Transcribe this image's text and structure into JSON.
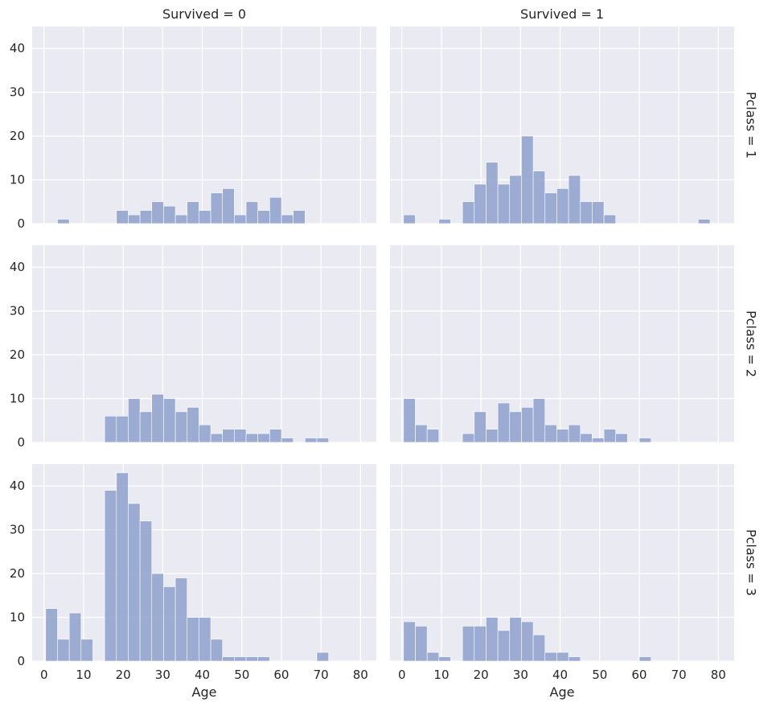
{
  "chart_data": {
    "type": "bar",
    "facet_title_template": "{col} = {val}",
    "col_var": "Survived",
    "row_var": "Pclass",
    "col_values": [
      "0",
      "1"
    ],
    "row_values": [
      "1",
      "2",
      "3"
    ],
    "col_titles": [
      "Survived = 0",
      "Survived = 1"
    ],
    "row_titles": [
      "Pclass = 1",
      "Pclass = 2",
      "Pclass = 3"
    ],
    "xlabel": "Age",
    "ylabel": "",
    "xlim": [
      -3,
      84
    ],
    "ylim": [
      0,
      45
    ],
    "xticks": [
      0,
      10,
      20,
      30,
      40,
      50,
      60,
      70,
      80
    ],
    "yticks": [
      0,
      10,
      20,
      30,
      40
    ],
    "bin_edges": [
      0.42,
      3.4,
      6.38,
      9.36,
      12.34,
      15.32,
      18.3,
      21.28,
      24.26,
      27.24,
      30.22,
      33.2,
      36.18,
      39.16,
      42.14,
      45.12,
      48.1,
      51.08,
      54.06,
      57.04,
      60.02,
      63.0,
      65.98,
      68.96,
      71.94,
      74.92,
      77.9,
      80.88
    ],
    "grid": true,
    "bar_color": "#8da0cb",
    "panels": [
      {
        "row": "1",
        "col": "0",
        "values": [
          0,
          1,
          0,
          0,
          0,
          0,
          3,
          2,
          3,
          5,
          4,
          2,
          5,
          3,
          7,
          8,
          2,
          5,
          3,
          6,
          2,
          3,
          0,
          0,
          0,
          0,
          0
        ]
      },
      {
        "row": "1",
        "col": "1",
        "values": [
          2,
          0,
          0,
          1,
          0,
          5,
          9,
          14,
          9,
          11,
          20,
          12,
          7,
          8,
          11,
          5,
          5,
          2,
          0,
          0,
          0,
          0,
          0,
          0,
          0,
          1,
          0
        ]
      },
      {
        "row": "2",
        "col": "0",
        "values": [
          0,
          0,
          0,
          0,
          0,
          6,
          6,
          10,
          7,
          11,
          10,
          7,
          8,
          4,
          2,
          3,
          3,
          2,
          2,
          3,
          1,
          0,
          1,
          1,
          0,
          0,
          0
        ]
      },
      {
        "row": "2",
        "col": "1",
        "values": [
          10,
          4,
          3,
          0,
          0,
          2,
          7,
          3,
          9,
          7,
          8,
          10,
          4,
          3,
          4,
          2,
          1,
          3,
          2,
          0,
          1,
          0,
          0,
          0,
          0,
          0,
          0
        ]
      },
      {
        "row": "3",
        "col": "0",
        "values": [
          12,
          5,
          11,
          5,
          0,
          39,
          43,
          36,
          32,
          20,
          17,
          19,
          10,
          10,
          5,
          1,
          1,
          1,
          1,
          0,
          0,
          0,
          0,
          2,
          0,
          0,
          0
        ]
      },
      {
        "row": "3",
        "col": "1",
        "values": [
          9,
          8,
          2,
          1,
          0,
          8,
          8,
          10,
          7,
          10,
          9,
          6,
          2,
          2,
          1,
          0,
          0,
          0,
          0,
          0,
          1,
          0,
          0,
          0,
          0,
          0,
          0
        ]
      }
    ]
  }
}
